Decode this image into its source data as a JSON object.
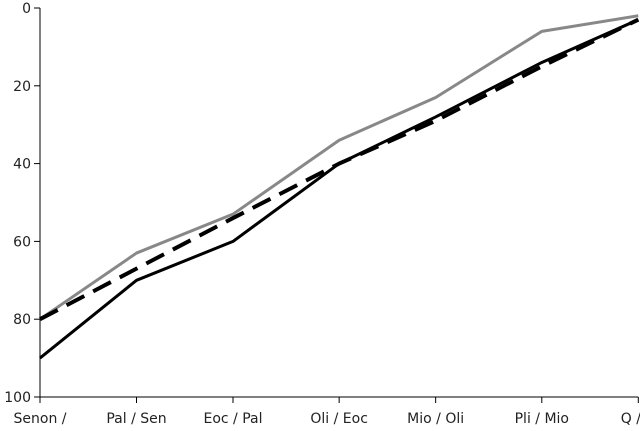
{
  "chart_data": {
    "type": "line",
    "title": "",
    "xlabel": "",
    "ylabel": "",
    "categories": [
      "Senon /",
      "Pal / Sen",
      "Eoc / Pal",
      "Oli / Eoc",
      "Mio / Oli",
      "Pli / Mio",
      "Q / N"
    ],
    "x_positions": [
      0,
      1,
      2,
      3.1,
      4.1,
      5.2,
      6.2
    ],
    "y_axis": {
      "reversed": true,
      "ylim": [
        0,
        100
      ],
      "ticks": [
        0,
        20,
        40,
        60,
        80,
        100
      ]
    },
    "grid": false,
    "legend": "none",
    "series": [
      {
        "style": "solid",
        "color": "#888888",
        "values": [
          80,
          63,
          53,
          34,
          23,
          6,
          2
        ]
      },
      {
        "style": "solid",
        "color": "#000000",
        "values": [
          90,
          70,
          60,
          40,
          28,
          14,
          3
        ]
      },
      {
        "style": "dashed",
        "color": "#000000",
        "values": [
          80,
          67,
          54,
          40,
          29,
          15,
          3
        ]
      }
    ]
  }
}
